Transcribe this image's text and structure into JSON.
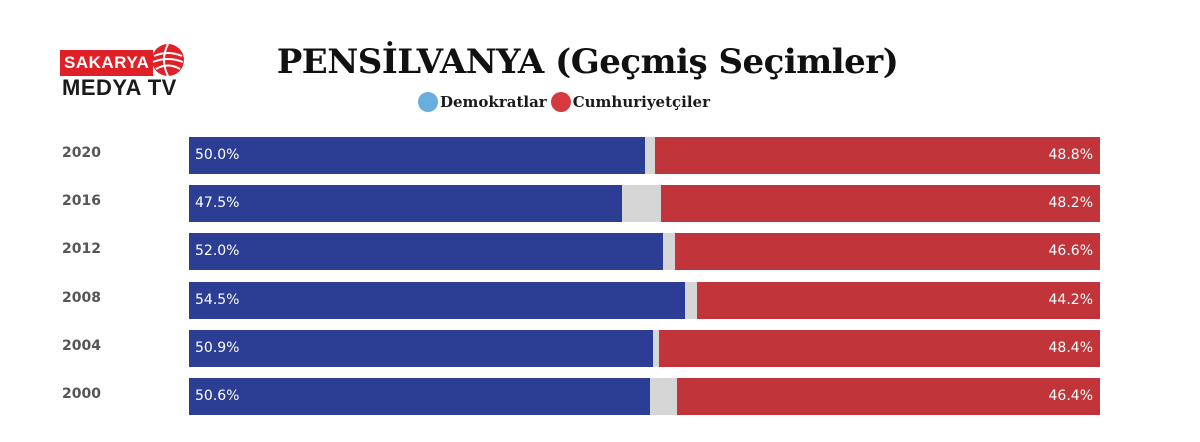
{
  "logo": {
    "top_text": "SAKARYA",
    "bottom_text": "MEDYA TV"
  },
  "chart_data": {
    "type": "bar",
    "orientation": "horizontal-stacked",
    "title": "PENSİLVANYA (Geçmiş Seçimler)",
    "xlim": [
      0,
      100
    ],
    "legend_placement": "top-center",
    "grid": false,
    "categories": [
      "2020",
      "2016",
      "2012",
      "2008",
      "2004",
      "2000"
    ],
    "series": [
      {
        "name": "Demokratlar",
        "color": "#2c3e93",
        "values": [
          50.0,
          47.5,
          52.0,
          54.5,
          50.9,
          50.6
        ],
        "labels": [
          "50.0%",
          "47.5%",
          "52.0%",
          "54.5%",
          "50.9%",
          "50.6%"
        ]
      },
      {
        "name": "Cumhuriyetçiler",
        "color": "#c0343a",
        "values": [
          48.8,
          48.2,
          46.6,
          44.2,
          48.4,
          46.4
        ],
        "labels": [
          "48.8%",
          "48.2%",
          "46.6%",
          "44.2%",
          "48.4%",
          "46.4%"
        ]
      }
    ],
    "legend_colors": {
      "Demokratlar": "#6aaee0",
      "Cumhuriyetçiler": "#d43a3f"
    }
  }
}
